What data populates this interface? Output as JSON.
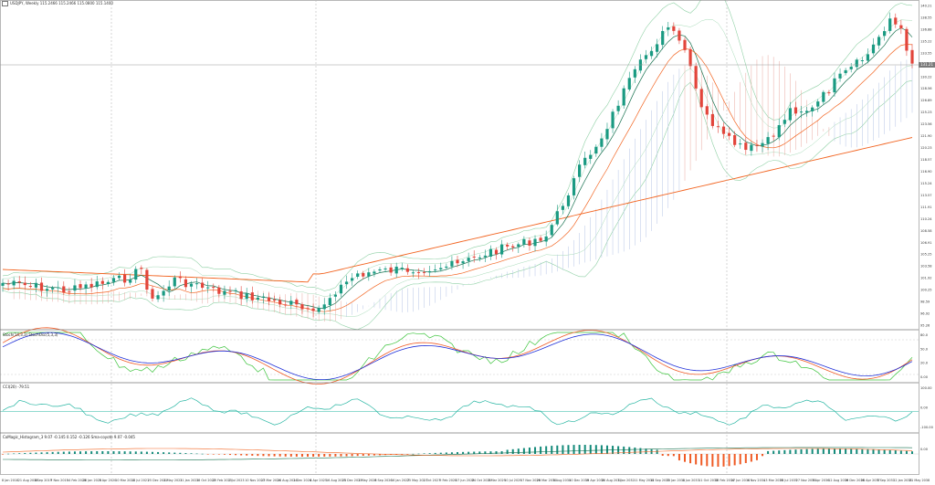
{
  "window": {
    "title": "USDJPY, Weekly  115.2466 115.2466 115.0800 115.1400",
    "symbol_icon": "chart-window-icon"
  },
  "price_axis": {
    "labels": [
      "140.21",
      "138.55",
      "136.88",
      "135.22",
      "133.55",
      "131.89",
      "130.22",
      "128.56",
      "126.89",
      "125.23",
      "123.56",
      "121.90",
      "120.23",
      "118.57",
      "116.90",
      "115.24",
      "113.57",
      "111.91",
      "110.24",
      "108.58",
      "106.91",
      "105.25",
      "103.58",
      "101.92",
      "100.25",
      "98.59",
      "96.92",
      "95.26"
    ],
    "current_price": "131.21"
  },
  "stoch_pane": {
    "label": "Stoch(14,3,3)  StochOsc(5,3,3)  ",
    "levels": [
      "80.0",
      "50.0",
      "20.0",
      "0.00"
    ]
  },
  "cci_pane": {
    "label": "CCI(20)  -79.51",
    "levels": [
      "100.00",
      "0.00",
      "-100.00"
    ]
  },
  "macd_pane": {
    "label": "CoMagic_Histogram_3  9.07  -0.145  0.152  -0.126  Sma-coyote  9.07  -0.045",
    "levels": [
      "0.00"
    ]
  },
  "time_axis": {
    "labels": [
      "8 Jan 2018",
      "21 Aug 2018",
      "8 Sep 2019",
      "7 Nov 2019",
      "14 Feb 2020",
      "26 Jan 2020",
      "3 Apr 2020",
      "10 Mar 2021",
      "18 Jul 2021",
      "25 Dec 2021",
      "4 May 2022",
      "11 Jan 2022",
      "18 Oct 2022",
      "25 Feb 2023",
      "2 Jul 2023",
      "10 Nov 2023",
      "17 Mar 2024",
      "24 Aug 2024",
      "1 Dec 2024",
      "8 Apr 2025",
      "16 Aug 2025",
      "23 Dec 2025",
      "1 May 2026",
      "8 Sep 2026",
      "16 Jan 2027",
      "25 May 2027",
      "2 Oct 2027",
      "9 Feb 2028",
      "17 Jun 2028",
      "24 Oct 2028",
      "3 Mar 2029",
      "10 Jul 2029",
      "17 Nov 2029",
      "26 Mar 2030",
      "3 Aug 2030",
      "10 Dec 2030",
      "19 Apr 2031",
      "26 Aug 2031",
      "3 Jan 2032",
      "11 May 2032",
      "18 Sep 2032",
      "25 Jan 2033",
      "4 Jun 2033",
      "11 Oct 2033",
      "18 Feb 2034",
      "27 Jun 2034",
      "4 Nov 2034",
      "13 Mar 2035",
      "20 Jul 2035",
      "27 Nov 2035",
      "5 Apr 2036",
      "12 Aug 2036",
      "19 Dec 2036",
      "28 Apr 2037",
      "5 Sep 2037",
      "12 Jan 2038",
      "21 May 2038"
    ]
  },
  "colors": {
    "bull": "#1a9a82",
    "bear": "#e2453b",
    "ma_red": "#f26522",
    "ma_dark": "#17714f",
    "bands": "#8fd0a5",
    "ichimoku": "#b6c4e6",
    "stoch_blue": "#1f2fd8",
    "stoch_orange": "#ef5a24",
    "stoch_green": "#3cc43c",
    "cci": "#26b5a2",
    "hist_pos": "#138a7a",
    "hist_neg": "#ef5a24",
    "grid": "#cccccc"
  }
}
